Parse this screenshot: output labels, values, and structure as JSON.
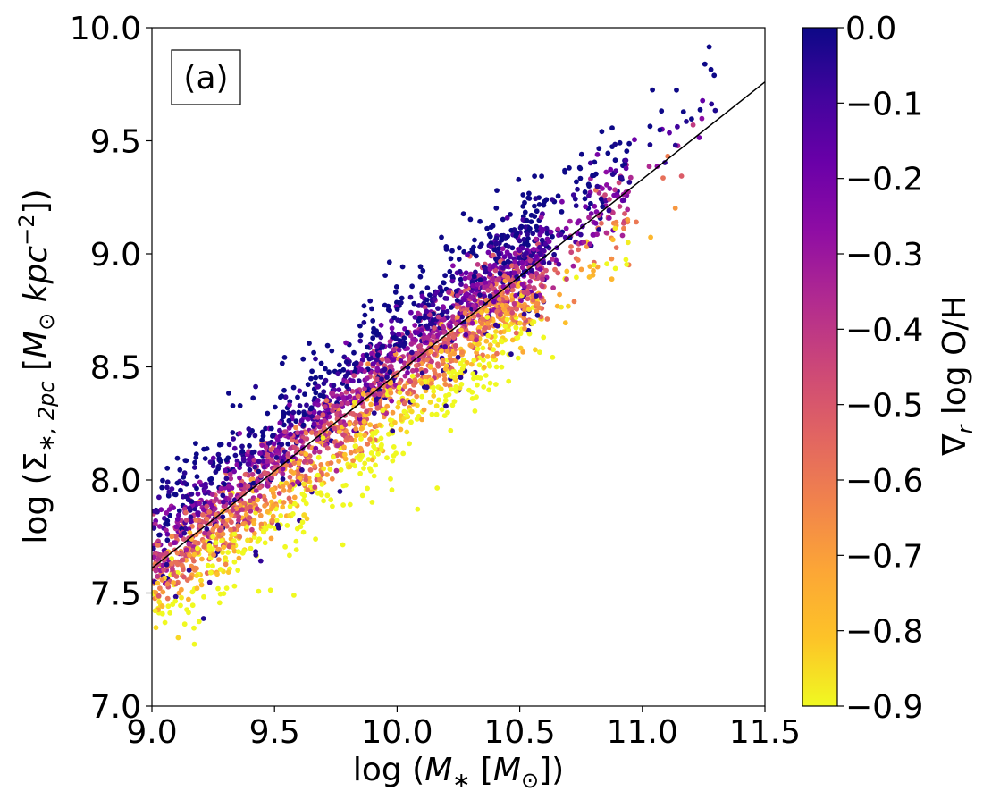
{
  "chart_data": {
    "type": "scatter",
    "panel_label": "(a)",
    "xlabel_parts": [
      "log (",
      "M",
      "∗",
      " [",
      "M",
      "⊙",
      "])"
    ],
    "ylabel_parts": [
      "log (",
      "Σ",
      "∗, 2pc",
      " [",
      "M",
      "⊙",
      " ",
      "kpc",
      "−2",
      "])"
    ],
    "colorbar_label_parts": [
      "∇",
      "r",
      " log O/H"
    ],
    "xlim": [
      9.0,
      11.5
    ],
    "ylim": [
      7.0,
      10.0
    ],
    "xticks": [
      "9.0",
      "9.5",
      "10.0",
      "10.5",
      "11.0",
      "11.5"
    ],
    "yticks": [
      "7.0",
      "7.5",
      "8.0",
      "8.5",
      "9.0",
      "9.5",
      "10.0"
    ],
    "colorbar": {
      "range": [
        -0.9,
        0.0
      ],
      "colormap": "plasma",
      "ticks": [
        "0.0",
        "−0.1",
        "−0.2",
        "−0.3",
        "−0.4",
        "−0.5",
        "−0.6",
        "−0.7",
        "−0.8",
        "−0.9"
      ]
    },
    "fit_line": {
      "x": [
        9.0,
        11.5
      ],
      "y": [
        7.61,
        9.76
      ],
      "color": "#000000"
    },
    "scatter_model": {
      "n_points": 3200,
      "x_range": [
        9.0,
        11.3
      ],
      "relation": "y ≈ 7.61 + 0.86·(x − 9.0)",
      "color_trend": "points above the fit line are more purple (shallower gradients), points below are more yellow (steeper gradients)"
    }
  }
}
